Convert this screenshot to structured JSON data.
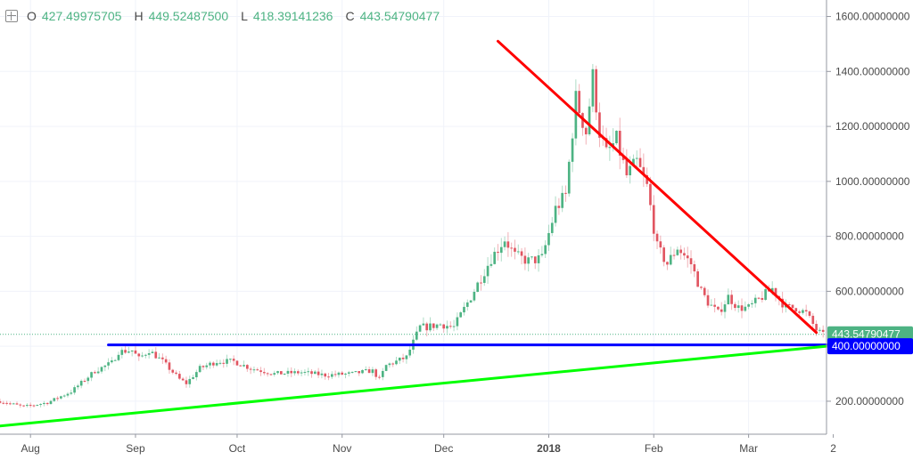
{
  "legend": {
    "open_key": "O",
    "open_value": "427.49975705",
    "high_key": "H",
    "high_value": "449.52487500",
    "low_key": "L",
    "low_value": "418.39141236",
    "close_key": "C",
    "close_value": "443.54790477"
  },
  "price_tags": {
    "last_price": "443.54790477",
    "support_level": "400.00000000"
  },
  "colors": {
    "up": "#4db383",
    "down": "#e15561",
    "resistance_line": "#ff0000",
    "support_line": "#0000ff",
    "uptrend_line": "#00ff00",
    "grid": "#f0f3fa"
  },
  "icons": [
    "expand-icon"
  ],
  "chart_data": {
    "type": "candlestick",
    "y_axis": {
      "range": [
        80,
        1660
      ],
      "tick_values": [
        200,
        400,
        600,
        800,
        1000,
        1200,
        1400,
        1600
      ],
      "tick_labels": [
        "200.00000000",
        "400.00000000",
        "600.00000000",
        "800.00000000",
        "1000.00000000",
        "1200.00000000",
        "1400.00000000",
        "1600.00000000"
      ]
    },
    "x_axis": {
      "range": [
        "2017-07-23",
        "2018-03-24"
      ],
      "ticks": [
        {
          "date": "2017-08-01",
          "label": "Aug",
          "bold": false
        },
        {
          "date": "2017-09-01",
          "label": "Sep",
          "bold": false
        },
        {
          "date": "2017-10-01",
          "label": "Oct",
          "bold": false
        },
        {
          "date": "2017-11-01",
          "label": "Nov",
          "bold": false
        },
        {
          "date": "2017-12-01",
          "label": "Dec",
          "bold": false
        },
        {
          "date": "2018-01-01",
          "label": "2018",
          "bold": true
        },
        {
          "date": "2018-02-01",
          "label": "Feb",
          "bold": false
        },
        {
          "date": "2018-03-01",
          "label": "Mar",
          "bold": false
        },
        {
          "date": "2018-03-26",
          "label": "2",
          "bold": false
        }
      ]
    },
    "grid": true,
    "close_path": [
      [
        "2017-07-23",
        200
      ],
      [
        "2017-07-30",
        180
      ],
      [
        "2017-08-06",
        195
      ],
      [
        "2017-08-13",
        235
      ],
      [
        "2017-08-20",
        310
      ],
      [
        "2017-08-25",
        340
      ],
      [
        "2017-08-27",
        380
      ],
      [
        "2017-08-31",
        385
      ],
      [
        "2017-09-02",
        355
      ],
      [
        "2017-09-05",
        385
      ],
      [
        "2017-09-09",
        345
      ],
      [
        "2017-09-14",
        280
      ],
      [
        "2017-09-16",
        265
      ],
      [
        "2017-09-20",
        320
      ],
      [
        "2017-09-25",
        345
      ],
      [
        "2017-09-30",
        345
      ],
      [
        "2017-10-05",
        320
      ],
      [
        "2017-10-12",
        300
      ],
      [
        "2017-10-20",
        305
      ],
      [
        "2017-10-27",
        295
      ],
      [
        "2017-11-04",
        300
      ],
      [
        "2017-11-09",
        310
      ],
      [
        "2017-11-10",
        310
      ],
      [
        "2017-11-12",
        280
      ],
      [
        "2017-11-14",
        330
      ],
      [
        "2017-11-20",
        360
      ],
      [
        "2017-11-24",
        470
      ],
      [
        "2017-11-26",
        470
      ],
      [
        "2017-11-30",
        480
      ],
      [
        "2017-12-04",
        470
      ],
      [
        "2017-12-09",
        580
      ],
      [
        "2017-12-15",
        720
      ],
      [
        "2017-12-19",
        790
      ],
      [
        "2017-12-22",
        730
      ],
      [
        "2017-12-26",
        710
      ],
      [
        "2017-12-30",
        720
      ],
      [
        "2018-01-03",
        900
      ],
      [
        "2018-01-06",
        950
      ],
      [
        "2018-01-09",
        1300
      ],
      [
        "2018-01-12",
        1180
      ],
      [
        "2018-01-14",
        1380
      ],
      [
        "2018-01-16",
        1180
      ],
      [
        "2018-01-18",
        1100
      ],
      [
        "2018-01-21",
        1150
      ],
      [
        "2018-01-24",
        1020
      ],
      [
        "2018-01-27",
        1070
      ],
      [
        "2018-01-30",
        980
      ],
      [
        "2018-02-02",
        760
      ],
      [
        "2018-02-05",
        700
      ],
      [
        "2018-02-08",
        760
      ],
      [
        "2018-02-12",
        700
      ],
      [
        "2018-02-15",
        600
      ],
      [
        "2018-02-17",
        560
      ],
      [
        "2018-02-20",
        520
      ],
      [
        "2018-02-23",
        580
      ],
      [
        "2018-02-26",
        540
      ],
      [
        "2018-03-01",
        540
      ],
      [
        "2018-03-05",
        580
      ],
      [
        "2018-03-08",
        610
      ],
      [
        "2018-03-12",
        540
      ],
      [
        "2018-03-15",
        540
      ],
      [
        "2018-03-18",
        520
      ],
      [
        "2018-03-21",
        460
      ],
      [
        "2018-03-23",
        440
      ]
    ],
    "overlays": [
      {
        "name": "resistance-line",
        "color": "#ff0000",
        "points": [
          [
            "2017-12-17",
            1510
          ],
          [
            "2018-03-21",
            450
          ]
        ]
      },
      {
        "name": "support-line",
        "color": "#0000ff",
        "points": [
          [
            "2017-08-24",
            405
          ],
          [
            "2018-03-26",
            405
          ]
        ]
      },
      {
        "name": "uptrend-line",
        "color": "#00ff00",
        "points": [
          [
            "2017-07-23",
            110
          ],
          [
            "2018-03-26",
            400
          ]
        ]
      }
    ]
  }
}
